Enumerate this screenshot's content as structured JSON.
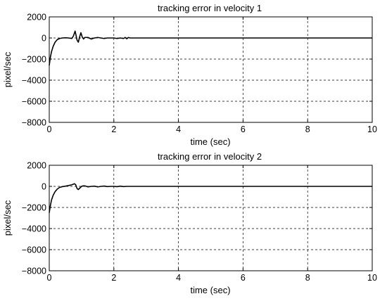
{
  "chart_data": [
    {
      "type": "line",
      "title": "tracking error in velocity 1",
      "xlabel": "time (sec)",
      "ylabel": "pixel/sec",
      "xlim": [
        0,
        10
      ],
      "ylim": [
        -8000,
        2000
      ],
      "xticks": [
        "0",
        "2",
        "4",
        "6",
        "8",
        "10"
      ],
      "yticks": [
        "2000",
        "0",
        "−2000",
        "−4000",
        "−6000",
        "−8000"
      ],
      "grid": true,
      "series": [
        {
          "x": [
            0,
            0.03,
            0.07,
            0.12,
            0.18,
            0.25,
            0.32,
            0.4,
            0.5,
            0.6,
            0.7,
            0.75,
            0.8,
            0.83,
            0.86,
            0.9,
            0.94,
            0.98,
            1.02,
            1.06,
            1.1,
            1.2,
            1.3,
            1.4,
            1.5,
            1.6,
            1.7,
            1.8,
            1.9,
            2.0,
            2.1,
            2.2,
            2.3,
            2.35,
            2.4,
            2.45,
            2.5,
            2.6,
            3,
            4,
            5,
            6,
            7,
            8,
            9,
            10
          ],
          "y": [
            -2600,
            -1900,
            -1300,
            -800,
            -400,
            -150,
            -50,
            0,
            20,
            0,
            -50,
            200,
            650,
            250,
            -200,
            -400,
            100,
            500,
            100,
            -100,
            50,
            50,
            -100,
            0,
            50,
            0,
            -50,
            0,
            0,
            0,
            -50,
            0,
            -50,
            50,
            -80,
            50,
            0,
            0,
            0,
            0,
            0,
            0,
            0,
            0,
            0,
            0
          ]
        }
      ]
    },
    {
      "type": "line",
      "title": "tracking error in velocity 2",
      "xlabel": "time (sec)",
      "ylabel": "pixel/sec",
      "xlim": [
        0,
        10
      ],
      "ylim": [
        -8000,
        2000
      ],
      "xticks": [
        "0",
        "2",
        "4",
        "6",
        "8",
        "10"
      ],
      "yticks": [
        "2000",
        "0",
        "−2000",
        "−4000",
        "−6000",
        "−8000"
      ],
      "grid": true,
      "series": [
        {
          "x": [
            0,
            0.03,
            0.07,
            0.12,
            0.18,
            0.25,
            0.32,
            0.4,
            0.5,
            0.6,
            0.7,
            0.78,
            0.82,
            0.86,
            0.9,
            0.95,
            1.0,
            1.05,
            1.1,
            1.15,
            1.2,
            1.3,
            1.4,
            1.5,
            1.6,
            1.7,
            1.8,
            1.9,
            2.0,
            2.1,
            2.2,
            2.3,
            2.4,
            2.5,
            3,
            4,
            5,
            6,
            7,
            8,
            9,
            10
          ],
          "y": [
            -2500,
            -1900,
            -1300,
            -850,
            -500,
            -250,
            -100,
            -30,
            20,
            80,
            150,
            250,
            150,
            -200,
            -300,
            -150,
            0,
            50,
            50,
            0,
            -50,
            0,
            20,
            -50,
            0,
            30,
            -20,
            0,
            0,
            -30,
            20,
            -20,
            0,
            0,
            0,
            0,
            0,
            0,
            0,
            0,
            0,
            0
          ]
        }
      ]
    }
  ]
}
